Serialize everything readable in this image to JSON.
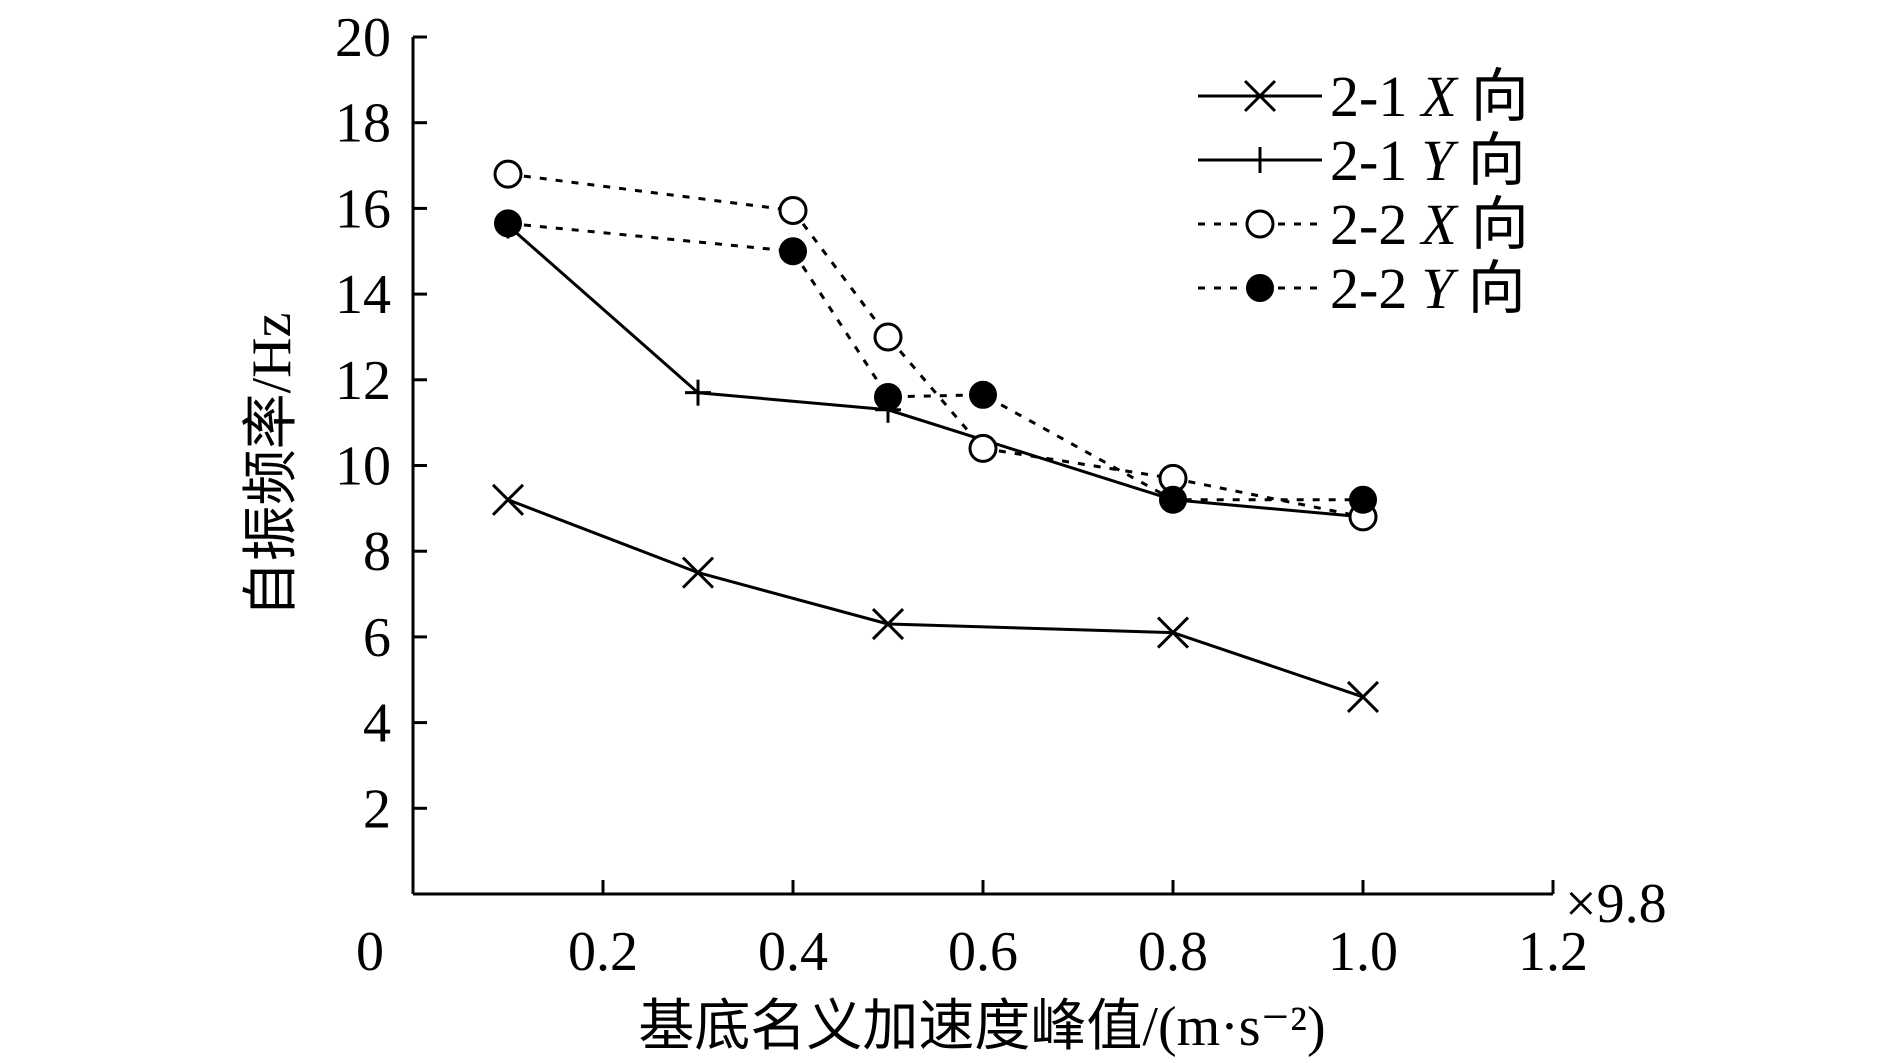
{
  "chart_data": {
    "type": "line",
    "title": "",
    "xlabel": "基底名义加速度峰值/(m·s⁻²)",
    "ylabel": "自振频率/Hz",
    "x_multiplier": "×9.8",
    "xlim": [
      0,
      1.2
    ],
    "ylim": [
      0,
      20
    ],
    "x_ticks": [
      0,
      0.2,
      0.4,
      0.6,
      0.8,
      1.0,
      1.2
    ],
    "x_tick_labels": [
      "0",
      "0.2",
      "0.4",
      "0.6",
      "0.8",
      "1.0",
      "1.2"
    ],
    "y_ticks": [
      2,
      4,
      6,
      8,
      10,
      12,
      14,
      16,
      18,
      20
    ],
    "y_tick_labels": [
      "2",
      "4",
      "6",
      "8",
      "10",
      "12",
      "14",
      "16",
      "18",
      "20"
    ],
    "legend_position": "top-right",
    "grid": false,
    "series": [
      {
        "name": "2-1 X 向",
        "label_prefix": "2-1",
        "label_axis": "X",
        "label_suffix": "向",
        "line": "solid",
        "marker": "x",
        "x": [
          0.1,
          0.3,
          0.5,
          0.8,
          1.0
        ],
        "y": [
          9.2,
          7.5,
          6.3,
          6.1,
          4.6
        ]
      },
      {
        "name": "2-1 Y 向",
        "label_prefix": "2-1",
        "label_axis": "Y",
        "label_suffix": "向",
        "line": "solid",
        "marker": "plus",
        "x": [
          0.1,
          0.3,
          0.5,
          0.8,
          1.0
        ],
        "y": [
          15.6,
          11.7,
          11.3,
          9.2,
          8.8
        ]
      },
      {
        "name": "2-2 X 向",
        "label_prefix": "2-2",
        "label_axis": "X",
        "label_suffix": "向",
        "line": "dotted",
        "marker": "open-circle",
        "x": [
          0.1,
          0.4,
          0.5,
          0.6,
          0.8,
          1.0
        ],
        "y": [
          16.8,
          15.95,
          13.0,
          10.4,
          9.7,
          8.8
        ]
      },
      {
        "name": "2-2 Y 向",
        "label_prefix": "2-2",
        "label_axis": "Y",
        "label_suffix": "向",
        "line": "dotted",
        "marker": "filled-circle",
        "x": [
          0.1,
          0.4,
          0.5,
          0.6,
          0.8,
          1.0
        ],
        "y": [
          15.65,
          15.0,
          11.6,
          11.65,
          9.2,
          9.2
        ]
      }
    ]
  }
}
